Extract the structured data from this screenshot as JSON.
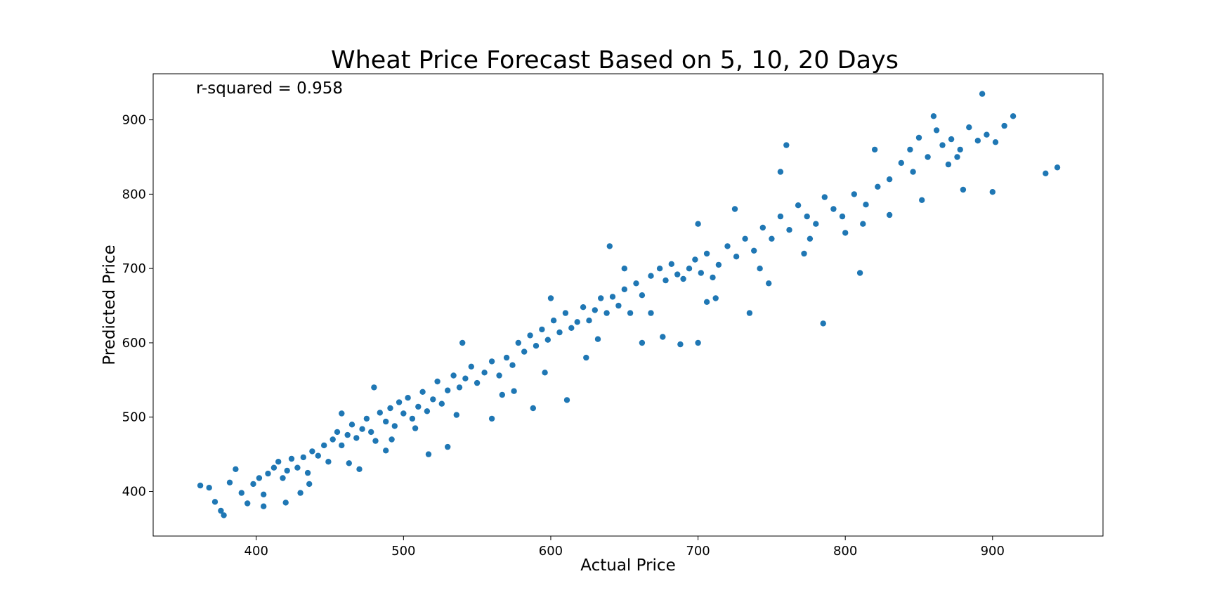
{
  "chart_data": {
    "type": "scatter",
    "title": "Wheat Price Forecast Based on 5, 10, 20 Days",
    "annotation": "r-squared = 0.958",
    "xlabel": "Actual Price",
    "ylabel": "Predicted Price",
    "xlim": [
      330,
      975
    ],
    "ylim": [
      340,
      962
    ],
    "xticks": [
      400,
      500,
      600,
      700,
      800,
      900
    ],
    "yticks": [
      400,
      500,
      600,
      700,
      800,
      900
    ],
    "grid": false,
    "marker_color": "#1f77b4",
    "series": [
      {
        "points": [
          [
            362,
            408
          ],
          [
            368,
            405
          ],
          [
            372,
            386
          ],
          [
            376,
            374
          ],
          [
            378,
            368
          ],
          [
            382,
            412
          ],
          [
            386,
            430
          ],
          [
            390,
            398
          ],
          [
            394,
            384
          ],
          [
            398,
            410
          ],
          [
            402,
            418
          ],
          [
            405,
            396
          ],
          [
            408,
            424
          ],
          [
            412,
            432
          ],
          [
            415,
            440
          ],
          [
            418,
            418
          ],
          [
            421,
            428
          ],
          [
            424,
            444
          ],
          [
            428,
            432
          ],
          [
            432,
            446
          ],
          [
            435,
            425
          ],
          [
            438,
            454
          ],
          [
            442,
            448
          ],
          [
            446,
            462
          ],
          [
            449,
            440
          ],
          [
            452,
            470
          ],
          [
            455,
            480
          ],
          [
            458,
            462
          ],
          [
            462,
            476
          ],
          [
            465,
            490
          ],
          [
            468,
            472
          ],
          [
            472,
            484
          ],
          [
            475,
            498
          ],
          [
            478,
            480
          ],
          [
            481,
            468
          ],
          [
            484,
            506
          ],
          [
            488,
            494
          ],
          [
            491,
            512
          ],
          [
            494,
            488
          ],
          [
            497,
            520
          ],
          [
            500,
            505
          ],
          [
            503,
            526
          ],
          [
            506,
            498
          ],
          [
            510,
            514
          ],
          [
            513,
            534
          ],
          [
            516,
            508
          ],
          [
            520,
            524
          ],
          [
            523,
            548
          ],
          [
            526,
            518
          ],
          [
            530,
            536
          ],
          [
            534,
            556
          ],
          [
            538,
            540
          ],
          [
            542,
            552
          ],
          [
            546,
            568
          ],
          [
            550,
            546
          ],
          [
            555,
            560
          ],
          [
            560,
            575
          ],
          [
            565,
            556
          ],
          [
            570,
            580
          ],
          [
            574,
            570
          ],
          [
            578,
            600
          ],
          [
            582,
            588
          ],
          [
            586,
            610
          ],
          [
            590,
            596
          ],
          [
            594,
            618
          ],
          [
            598,
            604
          ],
          [
            602,
            630
          ],
          [
            606,
            614
          ],
          [
            610,
            640
          ],
          [
            614,
            620
          ],
          [
            618,
            628
          ],
          [
            622,
            648
          ],
          [
            626,
            630
          ],
          [
            630,
            644
          ],
          [
            634,
            660
          ],
          [
            638,
            640
          ],
          [
            642,
            662
          ],
          [
            646,
            650
          ],
          [
            650,
            672
          ],
          [
            654,
            640
          ],
          [
            658,
            680
          ],
          [
            662,
            664
          ],
          [
            668,
            690
          ],
          [
            674,
            700
          ],
          [
            678,
            684
          ],
          [
            682,
            706
          ],
          [
            686,
            692
          ],
          [
            690,
            686
          ],
          [
            694,
            700
          ],
          [
            698,
            712
          ],
          [
            702,
            694
          ],
          [
            706,
            720
          ],
          [
            710,
            688
          ],
          [
            714,
            705
          ],
          [
            720,
            730
          ],
          [
            726,
            716
          ],
          [
            732,
            740
          ],
          [
            738,
            724
          ],
          [
            744,
            755
          ],
          [
            750,
            740
          ],
          [
            756,
            770
          ],
          [
            762,
            752
          ],
          [
            768,
            785
          ],
          [
            774,
            770
          ],
          [
            780,
            760
          ],
          [
            786,
            796
          ],
          [
            792,
            780
          ],
          [
            798,
            770
          ],
          [
            806,
            800
          ],
          [
            814,
            786
          ],
          [
            822,
            810
          ],
          [
            830,
            820
          ],
          [
            838,
            842
          ],
          [
            844,
            860
          ],
          [
            850,
            876
          ],
          [
            856,
            850
          ],
          [
            862,
            886
          ],
          [
            866,
            866
          ],
          [
            872,
            874
          ],
          [
            878,
            860
          ],
          [
            884,
            890
          ],
          [
            890,
            872
          ],
          [
            896,
            880
          ],
          [
            902,
            870
          ],
          [
            908,
            892
          ],
          [
            914,
            905
          ],
          [
            936,
            828
          ],
          [
            944,
            836
          ],
          [
            611,
            523
          ],
          [
            785,
            626
          ],
          [
            760,
            866
          ],
          [
            893,
            935
          ],
          [
            676,
            608
          ],
          [
            700,
            600
          ],
          [
            735,
            640
          ],
          [
            810,
            694
          ],
          [
            880,
            806
          ],
          [
            756,
            830
          ],
          [
            640,
            730
          ],
          [
            560,
            498
          ],
          [
            530,
            460
          ],
          [
            470,
            430
          ],
          [
            420,
            385
          ],
          [
            480,
            540
          ],
          [
            540,
            600
          ],
          [
            600,
            660
          ],
          [
            650,
            700
          ],
          [
            700,
            760
          ],
          [
            725,
            780
          ],
          [
            820,
            860
          ],
          [
            860,
            905
          ],
          [
            900,
            803
          ],
          [
            436,
            410
          ],
          [
            458,
            505
          ],
          [
            492,
            470
          ],
          [
            517,
            450
          ],
          [
            575,
            535
          ],
          [
            588,
            512
          ],
          [
            624,
            580
          ],
          [
            662,
            600
          ],
          [
            688,
            598
          ],
          [
            712,
            660
          ],
          [
            748,
            680
          ],
          [
            772,
            720
          ],
          [
            800,
            748
          ],
          [
            830,
            772
          ],
          [
            852,
            792
          ],
          [
            870,
            840
          ],
          [
            405,
            380
          ],
          [
            430,
            398
          ],
          [
            463,
            438
          ],
          [
            488,
            455
          ],
          [
            508,
            485
          ],
          [
            536,
            503
          ],
          [
            567,
            530
          ],
          [
            596,
            560
          ],
          [
            632,
            605
          ],
          [
            668,
            640
          ],
          [
            706,
            655
          ],
          [
            742,
            700
          ],
          [
            776,
            740
          ],
          [
            812,
            760
          ],
          [
            846,
            830
          ],
          [
            876,
            850
          ]
        ]
      }
    ]
  }
}
